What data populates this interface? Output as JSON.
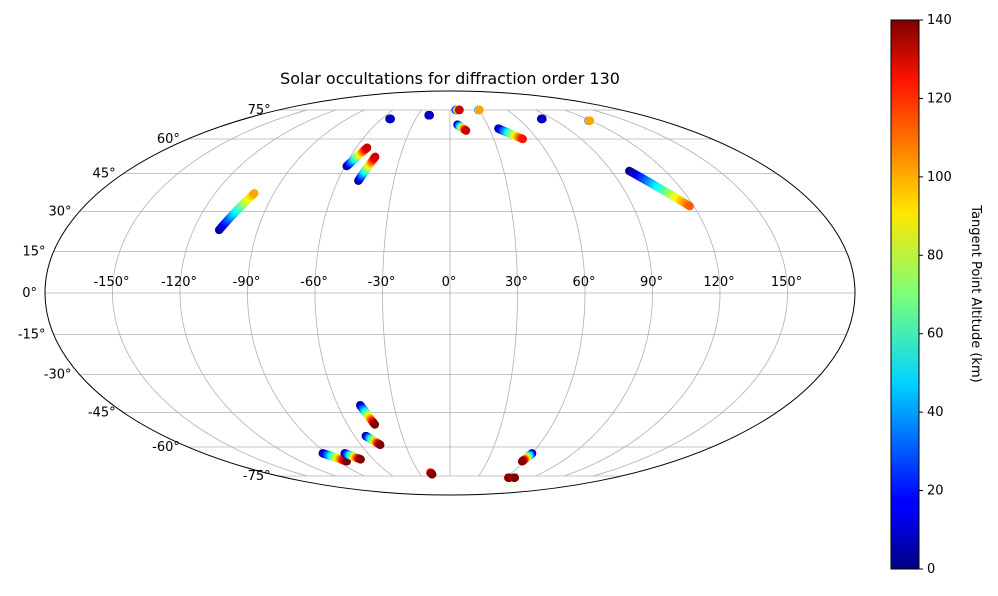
{
  "chart_data": {
    "type": "scatter",
    "projection": "mollweide",
    "title": "Solar occultations for diffraction order 130",
    "lon_ticks": [
      -150,
      -120,
      -90,
      -60,
      -30,
      0,
      30,
      60,
      90,
      120,
      150
    ],
    "lon_tick_labels": [
      "-150°",
      "-120°",
      "-90°",
      "-60°",
      "-30°",
      "0°",
      "30°",
      "60°",
      "90°",
      "120°",
      "150°"
    ],
    "lat_ticks": [
      -75,
      -60,
      -45,
      -30,
      -15,
      0,
      15,
      30,
      45,
      60,
      75
    ],
    "lat_tick_labels": [
      "-75°",
      "-60°",
      "-45°",
      "-30°",
      "-15°",
      "0°",
      "15°",
      "30°",
      "45°",
      "60°",
      "75°"
    ],
    "grid": true,
    "colorbar": {
      "label": "Tangent Point Altitude (km)",
      "range": [
        0,
        140
      ],
      "ticks": [
        0,
        20,
        40,
        60,
        80,
        100,
        120,
        140
      ],
      "tick_labels": [
        "0",
        "20",
        "40",
        "60",
        "80",
        "100",
        "120",
        "140"
      ],
      "colormap": "jet"
    },
    "tracks": [
      {
        "start": [
          -108,
          23
        ],
        "end": [
          -100,
          37
        ],
        "alt_range": [
          0,
          100
        ]
      },
      {
        "start": [
          -59,
          48
        ],
        "end": [
          -53,
          56
        ],
        "alt_range": [
          0,
          130
        ]
      },
      {
        "start": [
          -49,
          42
        ],
        "end": [
          -45,
          52
        ],
        "alt_range": [
          0,
          130
        ]
      },
      {
        "start": [
          -53,
          70
        ],
        "end": [
          -52,
          70
        ],
        "alt_range": [
          0,
          10
        ]
      },
      {
        "start": [
          -20,
          72
        ],
        "end": [
          -19,
          72
        ],
        "alt_range": [
          0,
          10
        ]
      },
      {
        "start": [
          6,
          75
        ],
        "end": [
          10,
          75
        ],
        "alt_range": [
          0,
          130
        ]
      },
      {
        "start": [
          6,
          67
        ],
        "end": [
          12,
          64
        ],
        "alt_range": [
          0,
          130
        ]
      },
      {
        "start": [
          30,
          75
        ],
        "end": [
          31,
          75
        ],
        "alt_range": [
          0,
          100
        ]
      },
      {
        "start": [
          37,
          65
        ],
        "end": [
          50,
          60
        ],
        "alt_range": [
          0,
          120
        ]
      },
      {
        "start": [
          80,
          70
        ],
        "end": [
          81,
          70
        ],
        "alt_range": [
          0,
          10
        ]
      },
      {
        "start": [
          118,
          69
        ],
        "end": [
          119,
          69
        ],
        "alt_range": [
          0,
          100
        ]
      },
      {
        "start": [
          100,
          46
        ],
        "end": [
          118,
          32
        ],
        "alt_range": [
          0,
          110
        ]
      },
      {
        "start": [
          -48,
          -42
        ],
        "end": [
          -44,
          -50
        ],
        "alt_range": [
          0,
          140
        ]
      },
      {
        "start": [
          -53,
          -55
        ],
        "end": [
          -47,
          -59
        ],
        "alt_range": [
          0,
          140
        ]
      },
      {
        "start": [
          -93,
          -63
        ],
        "end": [
          -83,
          -67
        ],
        "alt_range": [
          0,
          140
        ]
      },
      {
        "start": [
          -77,
          -63
        ],
        "end": [
          -70,
          -66
        ],
        "alt_range": [
          0,
          140
        ]
      },
      {
        "start": [
          -19,
          -73
        ],
        "end": [
          -18,
          -74
        ],
        "alt_range": [
          120,
          140
        ]
      },
      {
        "start": [
          60,
          -63
        ],
        "end": [
          58,
          -67
        ],
        "alt_range": [
          0,
          140
        ]
      },
      {
        "start": [
          64,
          -76
        ],
        "end": [
          65,
          -76
        ],
        "alt_range": [
          120,
          140
        ]
      },
      {
        "start": [
          70,
          -76
        ],
        "end": [
          71,
          -76
        ],
        "alt_range": [
          120,
          140
        ]
      }
    ]
  }
}
